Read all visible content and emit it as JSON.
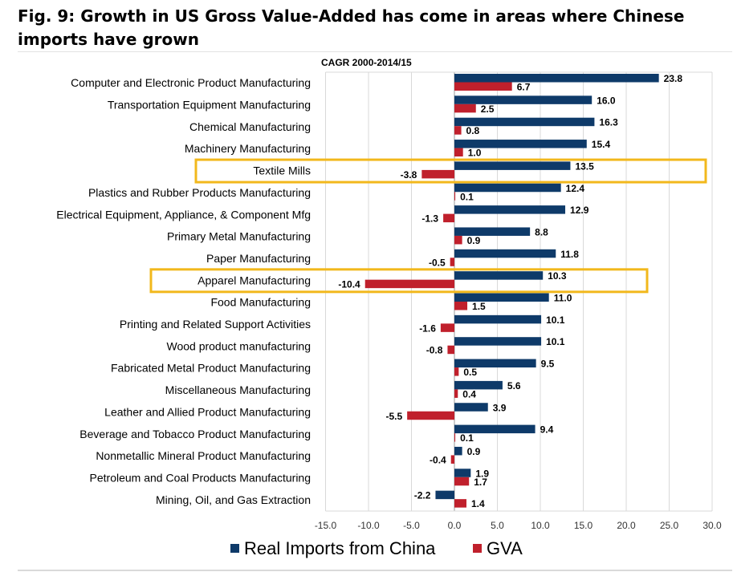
{
  "figure": {
    "title": "Fig. 9: Growth in US Gross Value-Added has come in areas where Chinese imports have grown"
  },
  "chart_data": {
    "type": "bar",
    "orientation": "horizontal",
    "title": "CAGR 2000-2014/15",
    "xlim": [
      -15,
      30
    ],
    "ticks": [
      "-15.0",
      "-10.0",
      "-5.0",
      "0.0",
      "5.0",
      "10.0",
      "15.0",
      "20.0",
      "25.0",
      "30.0"
    ],
    "categories": [
      "Computer and Electronic Product Manufacturing",
      "Transportation Equipment Manufacturing",
      "Chemical Manufacturing",
      "Machinery Manufacturing",
      "Textile Mills",
      "Plastics and Rubber Products Manufacturing",
      "Electrical Equipment, Appliance, & Component Mfg",
      "Primary Metal Manufacturing",
      "Paper Manufacturing",
      "Apparel Manufacturing",
      "Food Manufacturing",
      "Printing and Related Support Activities",
      "Wood product manufacturing",
      "Fabricated Metal Product Manufacturing",
      "Miscellaneous Manufacturing",
      "Leather and Allied Product Manufacturing",
      "Beverage and Tobacco Product Manufacturing",
      "Nonmetallic Mineral Product Manufacturing",
      "Petroleum and Coal Products Manufacturing",
      "Mining, Oil, and Gas Extraction"
    ],
    "series": [
      {
        "name": "Real Imports from China",
        "color": "#0e3a69",
        "values": [
          23.8,
          16.0,
          16.3,
          15.4,
          13.5,
          12.4,
          12.9,
          8.8,
          11.8,
          10.3,
          11.0,
          10.1,
          10.1,
          9.5,
          5.6,
          3.9,
          9.4,
          0.9,
          1.9,
          -2.2
        ],
        "labels": [
          "23.8",
          "16.0",
          "16.3",
          "15.4",
          "13.5",
          "12.4",
          "12.9",
          "8.8",
          "11.8",
          "10.3",
          "11.0",
          "10.1",
          "10.1",
          "9.5",
          "5.6",
          "3.9",
          "9.4",
          "0.9",
          "1.9",
          "-2.2"
        ]
      },
      {
        "name": "GVA",
        "color": "#c0202c",
        "values": [
          6.7,
          2.5,
          0.8,
          1.0,
          -3.8,
          0.1,
          -1.3,
          0.9,
          -0.5,
          -10.4,
          1.5,
          -1.6,
          -0.8,
          0.5,
          0.4,
          -5.5,
          0.1,
          -0.4,
          1.7,
          1.4
        ],
        "labels": [
          "6.7",
          "2.5",
          "0.8",
          "1.0",
          "-3.8",
          "0.1",
          "-1.3",
          "0.9",
          "-0.5",
          "-10.4",
          "1.5",
          "-1.6",
          "-0.8",
          "0.5",
          "0.4",
          "-5.5",
          "0.1",
          "-0.4",
          "1.7",
          "1.4"
        ]
      }
    ],
    "highlighted": [
      "Textile Mills",
      "Apparel Manufacturing"
    ],
    "highlight_color": "#f2b81c",
    "grid": true,
    "legend": "bottom-center"
  }
}
